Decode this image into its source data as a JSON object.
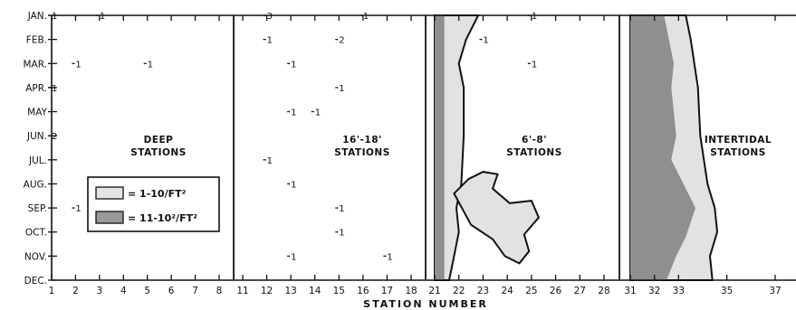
{
  "chart_data": {
    "type": "contour_occurrence",
    "xlabel": "STATION   NUMBER",
    "months": [
      "JAN.",
      "FEB.",
      "MAR.",
      "APR.",
      "MAY",
      "JUN.",
      "JUL.",
      "AUG.",
      "SEP.",
      "OCT.",
      "NOV.",
      "DEC."
    ],
    "panels": [
      {
        "label_line1": "DEEP",
        "label_line2": "STATIONS",
        "ticks": [
          "1",
          "2",
          "3",
          "4",
          "5",
          "6",
          "7",
          "8"
        ]
      },
      {
        "label_line1": "16'-18'",
        "label_line2": "STATIONS",
        "ticks": [
          "11",
          "12",
          "13",
          "14",
          "15",
          "16",
          "17",
          "18"
        ]
      },
      {
        "label_line1": "6'-8'",
        "label_line2": "STATIONS",
        "ticks": [
          "21",
          "22",
          "23",
          "24",
          "25",
          "26",
          "27",
          "28"
        ]
      },
      {
        "label_line1": "INTERTIDAL",
        "label_line2": "STATIONS",
        "ticks": [
          "31",
          "32",
          "33",
          "35",
          "37"
        ]
      }
    ],
    "legend": [
      {
        "label": "= 1-10/FT²",
        "fill": "#d6d6d6"
      },
      {
        "label": "= 11-10²/FT²",
        "fill": "#8a8a8a"
      }
    ],
    "observations": [
      {
        "station": 1,
        "month": 1,
        "count": "1"
      },
      {
        "station": 3,
        "month": 1,
        "count": "1"
      },
      {
        "station": 12,
        "month": 1,
        "count": "3"
      },
      {
        "station": 16,
        "month": 1,
        "count": "1"
      },
      {
        "station": 25,
        "month": 1,
        "count": "1"
      },
      {
        "station": 12,
        "month": 2,
        "count": "1"
      },
      {
        "station": 15,
        "month": 2,
        "count": "2"
      },
      {
        "station": 23,
        "month": 2,
        "count": "1"
      },
      {
        "station": 2,
        "month": 3,
        "count": "1"
      },
      {
        "station": 5,
        "month": 3,
        "count": "1"
      },
      {
        "station": 13,
        "month": 3,
        "count": "1"
      },
      {
        "station": 25,
        "month": 3,
        "count": "1"
      },
      {
        "station": 1,
        "month": 4,
        "count": "1"
      },
      {
        "station": 15,
        "month": 4,
        "count": "1"
      },
      {
        "station": 13,
        "month": 5,
        "count": "1"
      },
      {
        "station": 14,
        "month": 5,
        "count": "1"
      },
      {
        "station": 1,
        "month": 6,
        "count": "2"
      },
      {
        "station": 12,
        "month": 7,
        "count": "1"
      },
      {
        "station": 13,
        "month": 8,
        "count": "1"
      },
      {
        "station": 2,
        "month": 9,
        "count": "1"
      },
      {
        "station": 15,
        "month": 9,
        "count": "1"
      },
      {
        "station": 15,
        "month": 10,
        "count": "1"
      },
      {
        "station": 13,
        "month": 11,
        "count": "1"
      },
      {
        "station": 17,
        "month": 11,
        "count": "1"
      }
    ],
    "zones": [
      {
        "name": "6-8 low-density band",
        "density": "1-10/FT²",
        "points": [
          [
            21,
            1
          ],
          [
            22.8,
            1
          ],
          [
            22.3,
            2
          ],
          [
            22.0,
            3
          ],
          [
            22.2,
            4
          ],
          [
            22.2,
            6
          ],
          [
            22.1,
            8
          ],
          [
            21.9,
            9
          ],
          [
            22.0,
            10
          ],
          [
            21.8,
            11
          ],
          [
            21.6,
            12
          ],
          [
            21,
            12
          ]
        ]
      },
      {
        "name": "6-8 low-density blob",
        "density": "1-10/FT²",
        "points": [
          [
            21.8,
            8.4
          ],
          [
            22.4,
            7.8
          ],
          [
            23.0,
            7.5
          ],
          [
            23.6,
            7.6
          ],
          [
            23.4,
            8.2
          ],
          [
            24.1,
            8.8
          ],
          [
            25.0,
            8.7
          ],
          [
            25.3,
            9.4
          ],
          [
            24.7,
            10.1
          ],
          [
            24.9,
            10.8
          ],
          [
            24.5,
            11.3
          ],
          [
            23.9,
            11.0
          ],
          [
            23.4,
            10.3
          ],
          [
            22.5,
            9.7
          ],
          [
            21.8,
            8.4
          ]
        ]
      },
      {
        "name": "6-8 high-density strip",
        "density": "11-10²/FT²",
        "points": [
          [
            21,
            1
          ],
          [
            21.4,
            1
          ],
          [
            21.4,
            12
          ],
          [
            21,
            12
          ]
        ]
      },
      {
        "name": "Intertidal low-density band",
        "density": "1-10/FT²",
        "points": [
          [
            31,
            1
          ],
          [
            33.3,
            1
          ],
          [
            33.5,
            2
          ],
          [
            33.8,
            4
          ],
          [
            33.9,
            6
          ],
          [
            34.2,
            8
          ],
          [
            34.5,
            9
          ],
          [
            34.6,
            10
          ],
          [
            34.3,
            11
          ],
          [
            34.4,
            12
          ],
          [
            31,
            12
          ]
        ]
      },
      {
        "name": "Intertidal high-density band",
        "density": "11-10²/FT²",
        "points": [
          [
            31,
            1
          ],
          [
            32.4,
            1
          ],
          [
            32.6,
            2
          ],
          [
            32.8,
            3
          ],
          [
            32.7,
            4
          ],
          [
            32.8,
            5
          ],
          [
            32.9,
            6
          ],
          [
            32.7,
            7
          ],
          [
            33.2,
            8
          ],
          [
            33.7,
            9
          ],
          [
            33.3,
            10.2
          ],
          [
            32.9,
            11
          ],
          [
            32.5,
            12
          ],
          [
            31,
            12
          ]
        ]
      }
    ]
  }
}
